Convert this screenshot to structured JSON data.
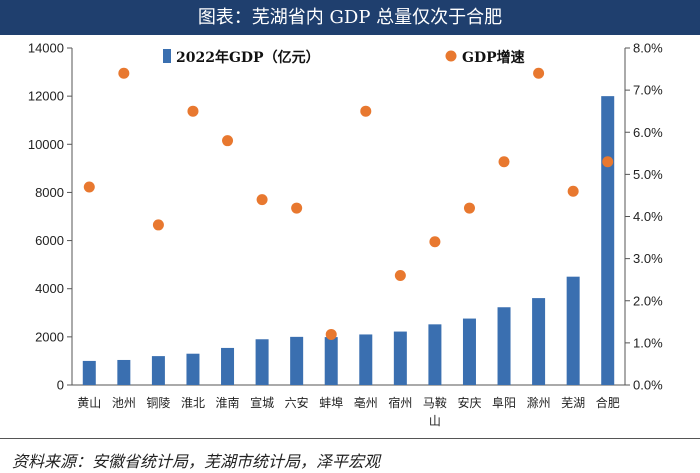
{
  "title": "图表：芜湖省内 GDP 总量仅次于合肥",
  "source": "资料来源：安徽省统计局，芜湖市统计局，泽平宏观",
  "chart_data": {
    "type": "bar",
    "categories": [
      "黄山",
      "池州",
      "铜陵",
      "淮北",
      "淮南",
      "宣城",
      "六安",
      "蚌埠",
      "亳州",
      "宿州",
      "马鞍山",
      "安庆",
      "阜阳",
      "滁州",
      "芜湖",
      "合肥"
    ],
    "category_lines": [
      [
        "黄山"
      ],
      [
        "池州"
      ],
      [
        "铜陵"
      ],
      [
        "淮北"
      ],
      [
        "淮南"
      ],
      [
        "宣城"
      ],
      [
        "六安"
      ],
      [
        "蚌埠"
      ],
      [
        "亳州"
      ],
      [
        "宿州"
      ],
      [
        "马鞍",
        "山"
      ],
      [
        "安庆"
      ],
      [
        "阜阳"
      ],
      [
        "滁州"
      ],
      [
        "芜湖"
      ],
      [
        "合肥"
      ]
    ],
    "series": [
      {
        "name": "2022年GDP（亿元）",
        "type": "bar",
        "axis": "left",
        "color": "#3a6fb0",
        "values": [
          1000,
          1040,
          1200,
          1300,
          1540,
          1900,
          2000,
          1990,
          2100,
          2220,
          2520,
          2760,
          3230,
          3610,
          4500,
          12000
        ]
      },
      {
        "name": "GDP增速",
        "type": "scatter",
        "axis": "right",
        "color": "#e8782f",
        "values": [
          4.7,
          7.4,
          3.8,
          6.5,
          5.8,
          4.4,
          4.2,
          1.2,
          6.5,
          2.6,
          3.4,
          4.2,
          5.3,
          7.4,
          4.6,
          5.3
        ]
      }
    ],
    "y_left": {
      "ylim": [
        0,
        14000
      ],
      "ticks": [
        0,
        2000,
        4000,
        6000,
        8000,
        10000,
        12000,
        14000
      ]
    },
    "y_right": {
      "ylim": [
        0,
        8.0
      ],
      "ticks": [
        "0.0%",
        "1.0%",
        "2.0%",
        "3.0%",
        "4.0%",
        "5.0%",
        "6.0%",
        "7.0%",
        "8.0%"
      ]
    },
    "legend": {
      "placement": "top"
    },
    "grid": false
  }
}
